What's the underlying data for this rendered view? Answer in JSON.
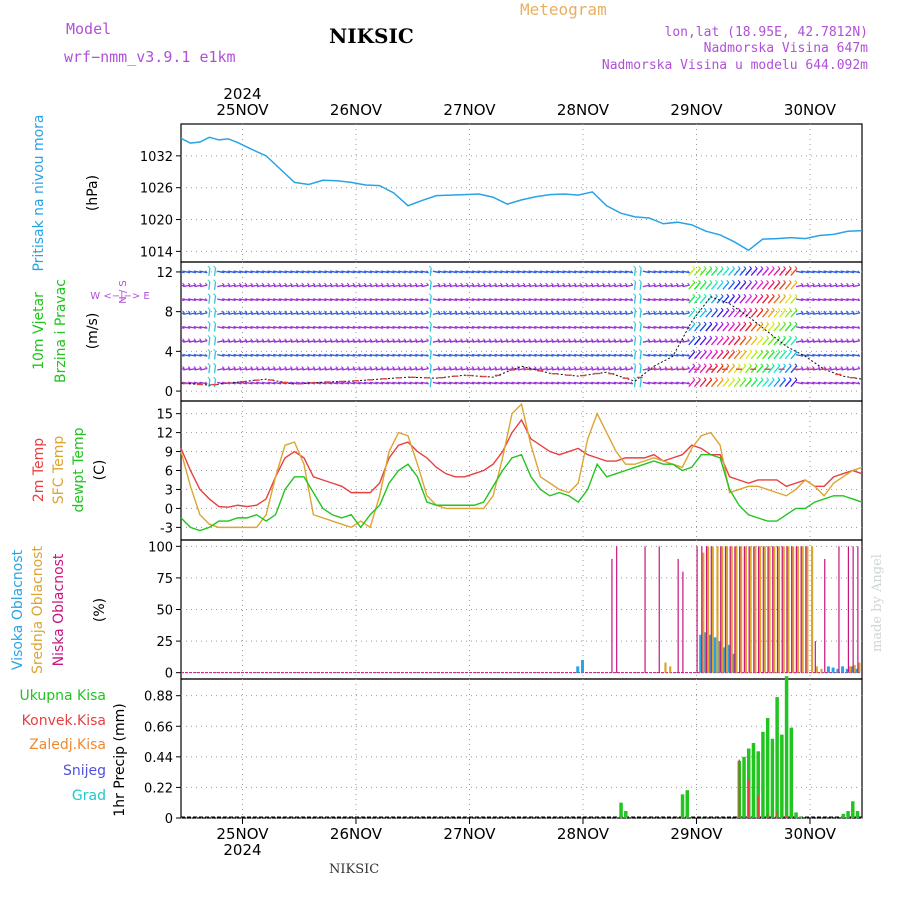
{
  "header": {
    "model_label": "Model",
    "model_name": "wrf−nmm_v3.9.1  e1km",
    "station": "NIKSIC",
    "product": "Meteogram",
    "lonlat": "lon,lat (18.95E, 42.7812N)",
    "altitude": "Nadmorska Visina 647m",
    "model_altitude": "Nadmorska Visina u modelu 644.092m",
    "footer_station": "NIKSIC",
    "credit": "made by Angel"
  },
  "colors": {
    "pressure": "#29a3e6",
    "temp2m": "#e84040",
    "sfc": "#dba531",
    "dewpt": "#22c41f",
    "high_cloud": "#29a3e6",
    "mid_cloud": "#dba531",
    "low_cloud": "#c8147e",
    "total_precip": "#22c41f",
    "conv_precip": "#e84040",
    "freezing_precip": "#f08830",
    "snow": "#5050e0",
    "hail": "#20c8c8",
    "wind_title": "#22c41f",
    "label_purple": "#b050d8"
  },
  "time_axis": {
    "year": "2024",
    "days": [
      "25NOV",
      "26NOV",
      "27NOV",
      "28NOV",
      "29NOV",
      "30NOV"
    ]
  },
  "chart_data": [
    {
      "type": "line",
      "title_lines": [
        "Pritisak na nivou mora",
        "(hPa)"
      ],
      "ylim": [
        1012,
        1038
      ],
      "yticks": [
        1014,
        1020,
        1026,
        1032
      ],
      "grid": true,
      "series": [
        {
          "name": "Pritisak na nivou mora",
          "x": [
            0,
            2,
            4,
            6,
            8,
            10,
            12,
            15,
            18,
            21,
            24,
            27,
            30,
            33,
            36,
            39,
            42,
            45,
            48,
            51,
            54,
            57,
            60,
            63,
            66,
            69,
            72,
            75,
            78,
            81,
            84,
            87,
            90,
            93,
            96,
            99,
            102,
            105,
            108,
            111,
            114,
            117,
            120,
            123,
            126,
            129,
            132,
            135,
            138,
            141,
            144
          ],
          "values": [
            1035.3,
            1034.4,
            1034.6,
            1035.5,
            1035.0,
            1035.2,
            1034.5,
            1033.2,
            1032.0,
            1029.5,
            1027.0,
            1026.6,
            1027.4,
            1027.3,
            1027.0,
            1026.5,
            1026.4,
            1025.0,
            1022.6,
            1023.6,
            1024.5,
            1024.6,
            1024.7,
            1024.8,
            1024.2,
            1022.9,
            1023.7,
            1024.3,
            1024.7,
            1024.8,
            1024.6,
            1025.2,
            1022.6,
            1021.2,
            1020.5,
            1020.3,
            1019.2,
            1019.5,
            1019.0,
            1017.8,
            1017.1,
            1015.8,
            1014.2,
            1016.3,
            1016.4,
            1016.6,
            1016.4,
            1017.0,
            1017.2,
            1017.8,
            1017.9
          ]
        }
      ]
    },
    {
      "type": "scatter",
      "title_lines": [
        "10m Vjetar",
        "Brzina i Pravac",
        "(m/s)"
      ],
      "compass": "W  <−|−>  E",
      "compass_ns": "N / S",
      "ylim": [
        -1,
        13
      ],
      "yticks": [
        0,
        4,
        8,
        12
      ],
      "grid": true,
      "series": [
        {
          "name": "wind speed",
          "x": [
            0,
            6,
            12,
            18,
            24,
            30,
            36,
            42,
            48,
            54,
            60,
            66,
            72,
            78,
            84,
            90,
            96,
            100,
            104,
            108,
            112,
            116,
            120,
            124,
            128,
            132,
            136,
            140,
            144
          ],
          "values": [
            0.8,
            0.6,
            0.9,
            1.2,
            0.7,
            0.9,
            1.0,
            1.2,
            1.4,
            1.3,
            1.6,
            1.4,
            2.5,
            1.8,
            1.5,
            1.9,
            1.0,
            2.5,
            3.5,
            7.0,
            9.5,
            8.8,
            7.5,
            6.0,
            4.5,
            3.5,
            2.2,
            1.5,
            1.2
          ]
        }
      ]
    },
    {
      "type": "line",
      "title_lines": [
        "2m Temp",
        "SFC Temp",
        "dewpt Temp",
        "(C)"
      ],
      "ylim": [
        -5,
        17
      ],
      "yticks": [
        -3,
        0,
        3,
        6,
        9,
        12,
        15
      ],
      "grid": true,
      "x": [
        0,
        2,
        4,
        6,
        8,
        10,
        12,
        14,
        16,
        18,
        20,
        22,
        24,
        26,
        28,
        30,
        32,
        34,
        36,
        38,
        40,
        42,
        44,
        46,
        48,
        50,
        52,
        54,
        56,
        58,
        60,
        62,
        64,
        66,
        68,
        70,
        72,
        74,
        76,
        78,
        80,
        82,
        84,
        86,
        88,
        90,
        92,
        94,
        96,
        98,
        100,
        102,
        104,
        106,
        108,
        110,
        112,
        114,
        116,
        118,
        120,
        122,
        124,
        126,
        128,
        130,
        132,
        134,
        136,
        138,
        140,
        142,
        144
      ],
      "series": [
        {
          "name": "2m Temp",
          "values": [
            9.5,
            6,
            3,
            1.5,
            0.3,
            0.2,
            0.5,
            0.3,
            0.5,
            1.5,
            5,
            8,
            9,
            8,
            5,
            4.5,
            4,
            3.5,
            2.5,
            2.5,
            2.5,
            4,
            8,
            10,
            10.5,
            9,
            8,
            6.5,
            5.5,
            5,
            5,
            5.5,
            6,
            7,
            9,
            12,
            14,
            11,
            10,
            9,
            8.5,
            9,
            9.5,
            8.5,
            8,
            7.5,
            7.5,
            8,
            8,
            8,
            8.5,
            7.5,
            8,
            8.5,
            10,
            9.5,
            8.5,
            8.5,
            5,
            4.5,
            4,
            4.5,
            4.5,
            4.5,
            3.5,
            4,
            4.5,
            3.5,
            3.5,
            5,
            5.5,
            6,
            5.5
          ]
        },
        {
          "name": "SFC Temp",
          "values": [
            9,
            3.5,
            -1,
            -2.5,
            -3,
            -3,
            -3,
            -3,
            -3,
            -1,
            5,
            10,
            10.5,
            7,
            -1,
            -1.5,
            -2,
            -2.5,
            -3,
            -2,
            -3,
            2,
            9,
            12,
            11.5,
            7,
            2,
            0.5,
            0,
            0,
            0,
            0,
            0,
            2,
            8,
            15,
            16.5,
            10,
            5,
            4,
            3,
            2.5,
            4,
            11,
            15,
            12,
            9,
            7,
            7,
            7.5,
            8,
            7.5,
            7,
            6.5,
            9.5,
            11.5,
            12,
            10,
            2.5,
            3,
            3.5,
            3.5,
            3,
            2.5,
            2,
            3,
            4.5,
            3.5,
            2,
            4,
            5,
            6,
            6.5
          ]
        },
        {
          "name": "dewpt Temp",
          "values": [
            -1.5,
            -3,
            -3.5,
            -3,
            -2,
            -2,
            -1.5,
            -1.5,
            -1,
            -2,
            -1,
            3,
            5,
            5,
            2.5,
            0,
            -1,
            -1.5,
            -1,
            -3,
            -1,
            0.5,
            4,
            6,
            7,
            5,
            1,
            0.5,
            0.5,
            0.5,
            0.5,
            0.5,
            1,
            3.5,
            6,
            8,
            8.5,
            5,
            3,
            2,
            2.5,
            2,
            1,
            3,
            7,
            5,
            5.5,
            6,
            6.5,
            7,
            7.5,
            7,
            7,
            6,
            6.5,
            8.5,
            8.5,
            8,
            3,
            0.5,
            -1,
            -1.5,
            -2,
            -2,
            -1,
            0,
            0,
            1,
            1.5,
            2,
            2,
            1.5,
            1
          ]
        }
      ]
    },
    {
      "type": "bar",
      "title_lines": [
        "Visoka Oblacnost",
        "Srednja Oblacnost",
        "Niska Oblacnost",
        "(%)"
      ],
      "ylim": [
        -5,
        105
      ],
      "yticks": [
        0,
        25,
        50,
        75,
        100
      ],
      "grid": true,
      "series": [
        {
          "name": "Visoka Oblacnost",
          "x": [
            84,
            85,
            110,
            111,
            112,
            113,
            114,
            115,
            116,
            117,
            137,
            138,
            139,
            140,
            141,
            142,
            143
          ],
          "values": [
            5,
            10,
            30,
            32,
            30,
            28,
            25,
            20,
            22,
            15,
            5,
            4,
            3,
            5,
            3,
            5,
            3
          ]
        },
        {
          "name": "Srednja Oblacnost",
          "x": [
            102,
            103,
            110,
            111,
            112,
            113,
            114,
            115,
            116,
            117,
            118,
            119,
            120,
            121,
            122,
            123,
            124,
            125,
            126,
            127,
            128,
            129,
            130,
            131,
            132,
            133,
            134,
            135,
            141,
            142,
            143
          ],
          "values": [
            8,
            5,
            95,
            100,
            100,
            100,
            100,
            100,
            100,
            100,
            100,
            100,
            100,
            100,
            100,
            100,
            100,
            100,
            100,
            100,
            100,
            100,
            100,
            100,
            100,
            100,
            5,
            3,
            5,
            6,
            8
          ]
        },
        {
          "name": "Niska Oblacnost",
          "x": [
            91,
            92,
            98,
            101,
            105,
            106,
            109,
            110,
            111,
            112,
            114,
            115,
            116,
            117,
            118,
            119,
            120,
            121,
            122,
            123,
            124,
            125,
            126,
            127,
            128,
            129,
            130,
            131,
            132,
            134,
            136,
            139,
            141,
            142,
            143
          ],
          "values": [
            90,
            100,
            100,
            100,
            90,
            80,
            100,
            100,
            100,
            100,
            100,
            100,
            100,
            100,
            100,
            100,
            100,
            100,
            100,
            100,
            100,
            100,
            100,
            100,
            100,
            100,
            100,
            100,
            100,
            25,
            90,
            100,
            100,
            100,
            100
          ]
        }
      ]
    },
    {
      "type": "bar",
      "title_lines": [
        "Ukupna Kisa",
        "Konvek.Kisa",
        "Zaledj.Kisa",
        "Snijeg",
        "Grad"
      ],
      "ylabel": "1hr Precip (mm)",
      "ylim": [
        0,
        1.0
      ],
      "yticks": [
        0,
        0.22,
        0.44,
        0.66,
        0.88
      ],
      "grid": true,
      "series": [
        {
          "name": "Ukupna Kisa",
          "x": [
            93,
            94,
            106,
            107,
            118,
            119,
            120,
            121,
            122,
            123,
            124,
            125,
            126,
            127,
            128,
            129,
            130,
            131,
            140,
            141,
            142,
            143
          ],
          "values": [
            0.11,
            0.05,
            0.17,
            0.2,
            0.41,
            0.44,
            0.5,
            0.54,
            0.48,
            0.62,
            0.72,
            0.57,
            0.87,
            0.6,
            1.02,
            0.65,
            0.04,
            0.01,
            0.03,
            0.05,
            0.12,
            0.05
          ]
        },
        {
          "name": "Konvek.Kisa",
          "x": [
            118,
            120,
            122,
            124,
            126,
            128
          ],
          "values": [
            0.42,
            0.28,
            0.16,
            0.03,
            0.05,
            0.02
          ]
        },
        {
          "name": "Zaledj.Kisa",
          "x": [],
          "values": []
        },
        {
          "name": "Snijeg",
          "x": [],
          "values": []
        },
        {
          "name": "Grad",
          "x": [],
          "values": []
        }
      ]
    }
  ]
}
